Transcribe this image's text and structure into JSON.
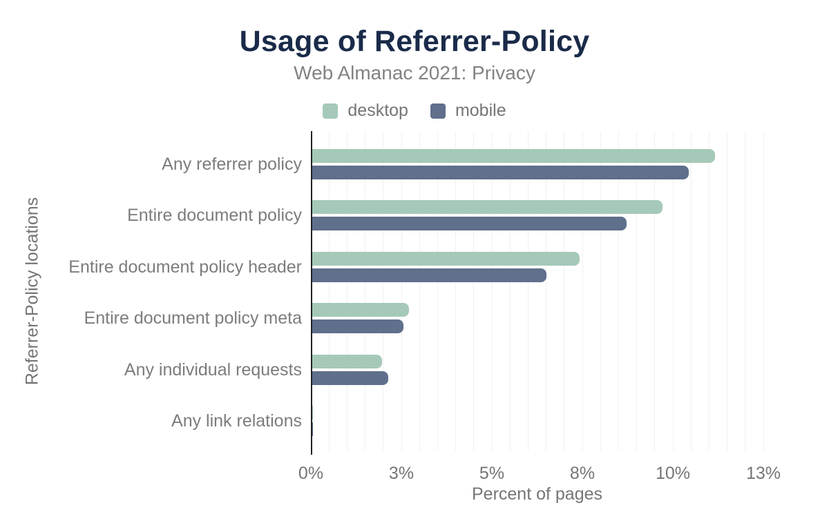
{
  "chart_data": {
    "type": "bar",
    "orientation": "horizontal",
    "title": "Usage of Referrer-Policy",
    "subtitle": "Web Almanac 2021: Privacy",
    "xlabel": "Percent of pages",
    "ylabel": "Referrer-Policy locations",
    "categories": [
      "Any referrer policy",
      "Entire document policy",
      "Entire document policy header",
      "Entire document policy meta",
      "Any individual requests",
      "Any link relations"
    ],
    "series": [
      {
        "name": "desktop",
        "color": "#a5c9b8",
        "values": [
          11.12,
          9.68,
          7.39,
          2.67,
          1.93,
          0.01
        ]
      },
      {
        "name": "mobile",
        "color": "#5f6f8c",
        "values": [
          10.4,
          8.68,
          6.47,
          2.51,
          2.09,
          0.01
        ]
      }
    ],
    "x_axis": {
      "min": 0,
      "max": 12.5,
      "tick_values": [
        0,
        2.5,
        5,
        7.5,
        10,
        12.5
      ],
      "tick_labels": [
        "0%",
        "3%",
        "5%",
        "8%",
        "10%",
        "13%"
      ],
      "minor_gridline_step_pct": 0.5,
      "unit": "%"
    },
    "legend_position": "top",
    "grid": true
  },
  "style": {
    "title_color": "#1a2b49",
    "subtitle_color": "#828282",
    "axis_text_color": "#757575",
    "category_text_color": "#7c7c7c",
    "axis_line_color": "#212121",
    "gridline_color": "#f1f1f1",
    "background": "#ffffff"
  }
}
